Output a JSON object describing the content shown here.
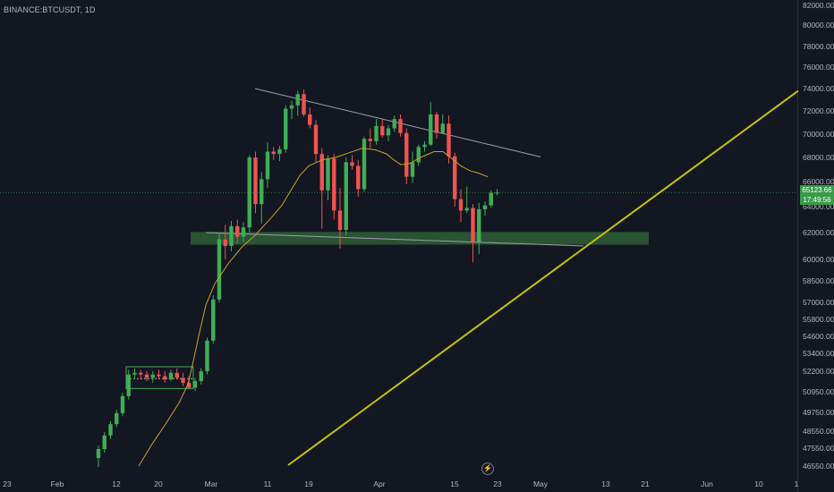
{
  "header": {
    "symbol": "BINANCE:BTCUSDT, 1D"
  },
  "price_badge": {
    "price": "65123.66",
    "countdown": "17:49:56"
  },
  "colors": {
    "up": "#26a69a",
    "up_body": "#3fae55",
    "down": "#ef5350",
    "ma": "#c9a227",
    "trendline": "#c9c200",
    "zone": "#2e5e35",
    "bg": "#131722"
  },
  "chart_data": {
    "type": "candlestick",
    "title": "",
    "xlabel": "",
    "ylabel": "",
    "x_tick_labels": [
      "23",
      "Feb",
      "12",
      "20",
      "Mar",
      "11",
      "19",
      "Apr",
      "15",
      "23",
      "May",
      "13",
      "21",
      "Jun",
      "10",
      "1"
    ],
    "y_tick_labels": [
      "82000.00",
      "80000.00",
      "78000.00",
      "76000.00",
      "74000.00",
      "72000.00",
      "70000.00",
      "68000.00",
      "66000.00",
      "64000.00",
      "62000.00",
      "60000.00",
      "58500.00",
      "57000.00",
      "55800.00",
      "54600.00",
      "53400.00",
      "52200.00",
      "50950.00",
      "49750.00",
      "48550.00",
      "47550.00",
      "46550.00"
    ],
    "y_tick_values": [
      82000,
      80000,
      78000,
      76000,
      74000,
      72000,
      70000,
      68000,
      66000,
      64000,
      62000,
      60000,
      58500,
      57000,
      55800,
      54600,
      53400,
      52200,
      50950,
      49750,
      48550,
      47550,
      46550
    ],
    "last_price": 65123.66,
    "candles": [
      [
        47000,
        47700,
        46500,
        47500
      ],
      [
        47500,
        48500,
        47300,
        48300
      ],
      [
        48300,
        49200,
        48100,
        49000
      ],
      [
        49000,
        49900,
        48800,
        49700
      ],
      [
        49700,
        50900,
        49500,
        50700
      ],
      [
        50700,
        52300,
        50500,
        52000
      ],
      [
        52000,
        52400,
        51800,
        52100
      ],
      [
        52100,
        52300,
        51700,
        52000
      ],
      [
        52000,
        52200,
        51600,
        51800
      ],
      [
        51800,
        52200,
        51500,
        52000
      ],
      [
        52000,
        52300,
        51700,
        51900
      ],
      [
        51900,
        52200,
        51500,
        51700
      ],
      [
        51700,
        52300,
        51600,
        52100
      ],
      [
        52100,
        52400,
        51700,
        51800
      ],
      [
        51800,
        52100,
        51300,
        51500
      ],
      [
        51500,
        51900,
        51100,
        51200
      ],
      [
        51200,
        51800,
        51000,
        51600
      ],
      [
        51600,
        52400,
        51400,
        52200
      ],
      [
        52200,
        54500,
        52000,
        54300
      ],
      [
        54300,
        57500,
        54100,
        57200
      ],
      [
        57200,
        62000,
        57000,
        61500
      ],
      [
        61500,
        62600,
        60000,
        61000
      ],
      [
        61000,
        62900,
        60600,
        62500
      ],
      [
        62500,
        63000,
        61200,
        61700
      ],
      [
        61700,
        62800,
        61300,
        62400
      ],
      [
        62400,
        68200,
        62000,
        68000
      ],
      [
        68000,
        68500,
        63500,
        64200
      ],
      [
        64200,
        66800,
        62700,
        66200
      ],
      [
        66200,
        69300,
        65500,
        68500
      ],
      [
        68500,
        68900,
        67800,
        68300
      ],
      [
        68300,
        69000,
        67700,
        68700
      ],
      [
        68700,
        72500,
        68400,
        72200
      ],
      [
        72200,
        72900,
        71300,
        72500
      ],
      [
        72500,
        73800,
        71600,
        73500
      ],
      [
        73500,
        73900,
        71500,
        71700
      ],
      [
        71700,
        72300,
        70500,
        70800
      ],
      [
        70800,
        71200,
        67600,
        68300
      ],
      [
        68300,
        68800,
        62300,
        65300
      ],
      [
        65300,
        68200,
        64500,
        67900
      ],
      [
        67900,
        68300,
        63000,
        63700
      ],
      [
        63700,
        65500,
        60800,
        62200
      ],
      [
        62200,
        68000,
        61800,
        67600
      ],
      [
        67600,
        68200,
        67000,
        67300
      ],
      [
        67300,
        67800,
        64800,
        65400
      ],
      [
        65400,
        69800,
        65200,
        69600
      ],
      [
        69600,
        70500,
        68800,
        69400
      ],
      [
        69400,
        71300,
        69100,
        70700
      ],
      [
        70700,
        71300,
        69700,
        69900
      ],
      [
        69900,
        70800,
        69400,
        70500
      ],
      [
        70500,
        71600,
        70200,
        71300
      ],
      [
        71300,
        71700,
        69800,
        70100
      ],
      [
        70100,
        70500,
        65800,
        66400
      ],
      [
        66400,
        68500,
        65900,
        67600
      ],
      [
        67600,
        69100,
        67300,
        68900
      ],
      [
        68900,
        69400,
        68500,
        69100
      ],
      [
        69100,
        72800,
        69000,
        71700
      ],
      [
        71700,
        71900,
        69600,
        70100
      ],
      [
        70100,
        71700,
        70000,
        70900
      ],
      [
        70900,
        71600,
        67500,
        68100
      ],
      [
        68100,
        68400,
        64000,
        64600
      ],
      [
        64600,
        65400,
        62800,
        63700
      ],
      [
        63700,
        65600,
        63500,
        63900
      ],
      [
        63900,
        64200,
        59800,
        61300
      ],
      [
        61300,
        64300,
        60400,
        63800
      ],
      [
        63800,
        64400,
        63300,
        64100
      ],
      [
        64100,
        65300,
        63900,
        65100
      ],
      [
        65100,
        65400,
        64900,
        65124
      ]
    ],
    "resistance_line": {
      "from": [
        285,
        74000
      ],
      "to": [
        604,
        68050
      ]
    },
    "support_line": {
      "from": [
        230,
        62000
      ],
      "to": [
        652,
        61000
      ]
    },
    "support_zone": {
      "x": [
        213,
        725
      ],
      "price_range": [
        61100,
        62050
      ]
    },
    "consolidation_box": {
      "x": [
        141,
        216
      ],
      "price_range": [
        51150,
        52500
      ]
    },
    "rising_trendline": {
      "from": [
        322,
        46600
      ],
      "to": [
        892,
        73800
      ]
    },
    "moving_average": [
      [
        155,
        46550
      ],
      [
        170,
        47800
      ],
      [
        185,
        49000
      ],
      [
        200,
        50300
      ],
      [
        210,
        51400
      ],
      [
        215,
        52600
      ],
      [
        222,
        54600
      ],
      [
        230,
        56800
      ],
      [
        240,
        58300
      ],
      [
        255,
        59700
      ],
      [
        270,
        60900
      ],
      [
        285,
        61800
      ],
      [
        300,
        62900
      ],
      [
        315,
        64100
      ],
      [
        325,
        65300
      ],
      [
        335,
        66500
      ],
      [
        345,
        67300
      ],
      [
        360,
        67800
      ],
      [
        375,
        68000
      ],
      [
        390,
        68400
      ],
      [
        405,
        68800
      ],
      [
        420,
        68650
      ],
      [
        432,
        68300
      ],
      [
        440,
        67800
      ],
      [
        448,
        67400
      ],
      [
        458,
        67500
      ],
      [
        470,
        68000
      ],
      [
        485,
        68500
      ],
      [
        495,
        68500
      ],
      [
        505,
        67900
      ],
      [
        515,
        67300
      ],
      [
        525,
        66900
      ],
      [
        535,
        66700
      ],
      [
        545,
        66400
      ]
    ]
  }
}
